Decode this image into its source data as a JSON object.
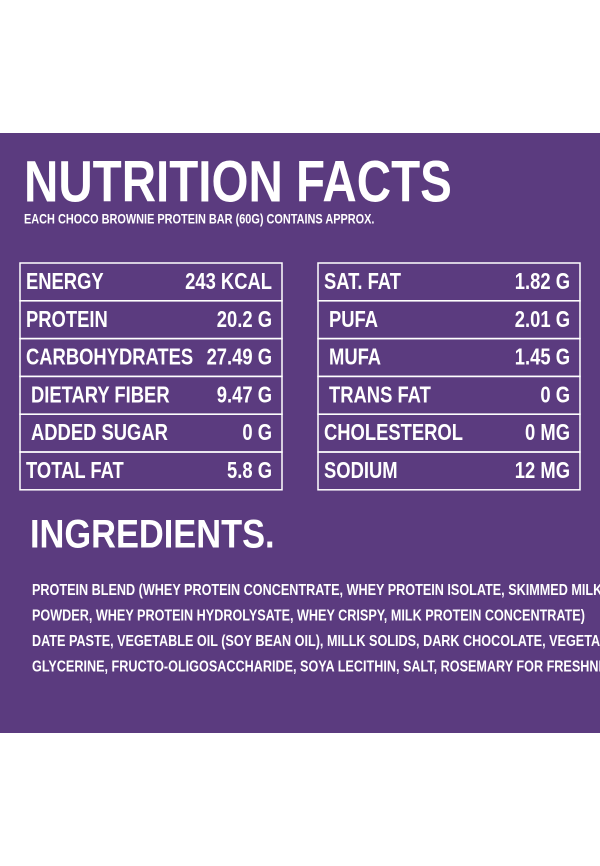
{
  "header": {
    "title": "NUTRITION FACTS",
    "subtitle": "EACH CHOCO BROWNIE PROTEIN BAR (60G)  CONTAINS APPROX."
  },
  "left_table": {
    "rows": [
      [
        "ENERGY",
        "243 KCAL"
      ],
      [
        "PROTEIN",
        "20.2 G"
      ],
      [
        "CARBOHYDRATES",
        "27.49 G"
      ],
      [
        "DIETARY FIBER",
        "9.47 G"
      ],
      [
        "ADDED SUGAR",
        "0 G"
      ],
      [
        "TOTAL FAT",
        "5.8 G"
      ]
    ]
  },
  "right_table": {
    "rows": [
      [
        "SAT. FAT",
        "1.82 G"
      ],
      [
        "PUFA",
        "2.01 G"
      ],
      [
        "MUFA",
        "1.45 G"
      ],
      [
        "TRANS FAT",
        "0 G"
      ],
      [
        "CHOLESTEROL",
        "0 MG"
      ],
      [
        "SODIUM",
        "12 MG"
      ]
    ]
  },
  "ingredients": {
    "title": "INGREDIENTS.",
    "lines": [
      "PROTEIN BLEND (WHEY PROTEIN CONCENTRATE, WHEY PROTEIN ISOLATE, SKIMMED MILK",
      "POWDER, WHEY PROTEIN HYDROLYSATE, WHEY CRISPY, MILK PROTEIN CONCENTRATE)",
      "DATE PASTE, VEGETABLE OIL (SOY BEAN OIL), MILLK SOLIDS, DARK CHOCOLATE, VEGETABLE",
      "GLYCERINE, FRUCTO-OLIGOSACCHARIDE, SOYA LECITHIN, SALT, ROSEMARY FOR FRESHNESS"
    ]
  }
}
